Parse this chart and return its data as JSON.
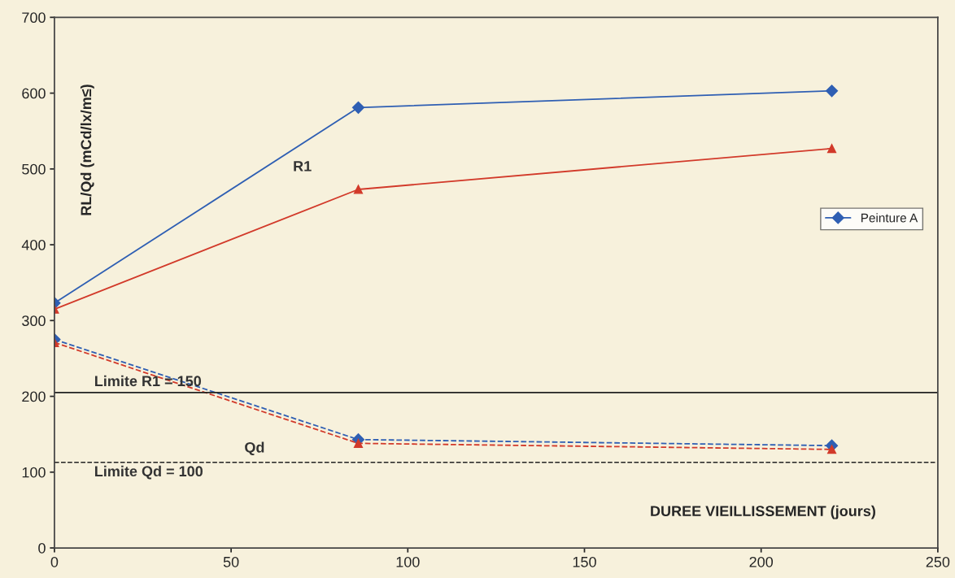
{
  "chart_data": {
    "type": "line",
    "ylabel": "RL/Qd (mCd/lx/m≤)",
    "xlabel": "DUREE VIEILLISSEMENT (jours)",
    "xlim": [
      0,
      250
    ],
    "xticks": [
      0,
      50,
      100,
      150,
      200,
      250
    ],
    "ylim": [
      0,
      700
    ],
    "yticks": [
      0,
      100,
      200,
      300,
      400,
      500,
      600,
      700
    ],
    "grid": false,
    "legend": "right",
    "series": [
      {
        "name": "Peinture A",
        "color": "#2f5fb3",
        "x": [
          0,
          86,
          220
        ],
        "values": [
          323,
          581,
          603
        ],
        "marker": "diamond",
        "line_style": "solid"
      },
      {
        "color": "#d23a2a",
        "x": [
          0,
          86,
          220
        ],
        "values": [
          315,
          473,
          527
        ],
        "marker": "triangle",
        "line_style": "solid"
      },
      {
        "color": "#2f5fb3",
        "x": [
          0,
          86,
          220
        ],
        "values": [
          275,
          143,
          135
        ],
        "marker": "diamond",
        "line_style": "dashed"
      },
      {
        "color": "#d23a2a",
        "x": [
          0,
          86,
          220
        ],
        "values": [
          271,
          138,
          130
        ],
        "marker": "triangle",
        "line_style": "dashed"
      }
    ],
    "ref_lines": [
      {
        "axis": "y",
        "value": 205,
        "color": "#222222",
        "line_style": "solid"
      },
      {
        "axis": "y",
        "value": 113,
        "color": "#222222",
        "line_style": "dashed"
      }
    ],
    "annotations": [
      "R1",
      "Qd",
      "Limite R1 = 150",
      "Limite Qd = 100"
    ]
  }
}
